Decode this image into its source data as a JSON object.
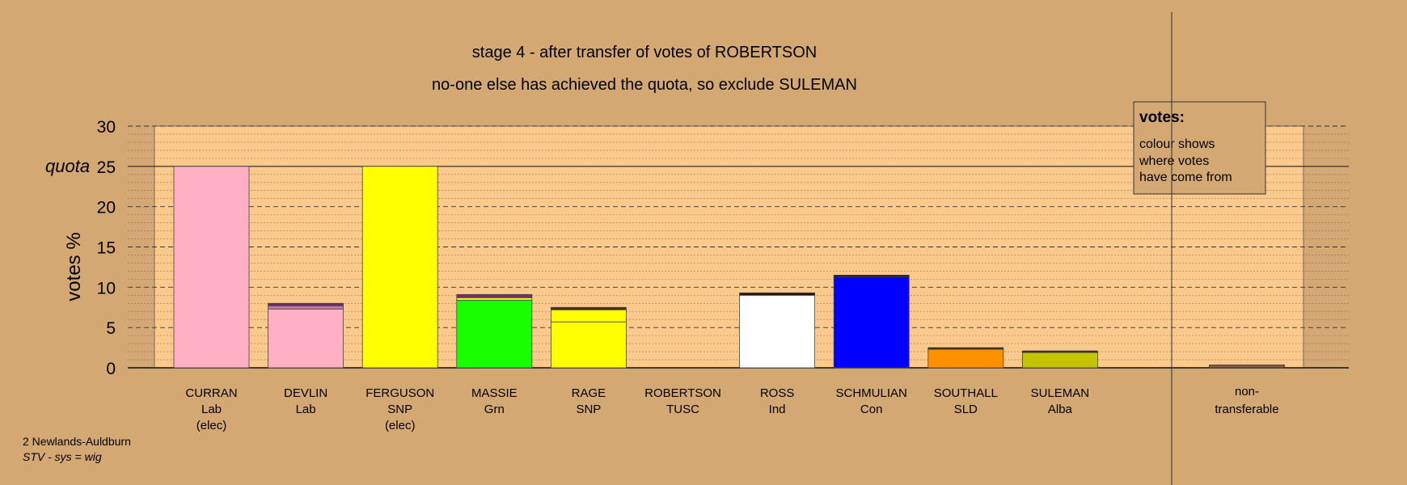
{
  "chart_data": {
    "type": "bar",
    "title": "stage 4 - after transfer of votes of ROBERTSON",
    "subtitle": "no-one else has achieved the quota, so exclude SULEMAN",
    "ylabel": "votes %",
    "ylim": [
      0,
      30
    ],
    "yticks": [
      0,
      5,
      10,
      15,
      20,
      25,
      30
    ],
    "quota_label": "quota",
    "quota": 25,
    "legend": {
      "title": "votes:",
      "lines": [
        "colour shows",
        "where votes",
        "have come from"
      ],
      "position": "top-right"
    },
    "colors": {
      "background": "#d4a872",
      "plot_area": "#fbc98c",
      "plot_side": "#d4a872"
    },
    "candidates": [
      {
        "name": "CURRAN",
        "party": "Lab",
        "status": "(elec)",
        "segments": [
          {
            "value": 25.0,
            "color": "#ffb0c4"
          }
        ]
      },
      {
        "name": "DEVLIN",
        "party": "Lab",
        "status": "",
        "segments": [
          {
            "value": 7.3,
            "color": "#ffb0c4"
          },
          {
            "value": 0.4,
            "color": "#c47a9a"
          },
          {
            "value": 0.3,
            "color": "#6b2a6a"
          }
        ]
      },
      {
        "name": "FERGUSON",
        "party": "SNP",
        "status": "(elec)",
        "segments": [
          {
            "value": 25.0,
            "color": "#ffff00"
          }
        ]
      },
      {
        "name": "MASSIE",
        "party": "Grn",
        "status": "",
        "segments": [
          {
            "value": 8.4,
            "color": "#1aff00"
          },
          {
            "value": 0.3,
            "color": "#ffff00"
          },
          {
            "value": 0.4,
            "color": "#7a2a7a"
          }
        ]
      },
      {
        "name": "RAGE",
        "party": "SNP",
        "status": "",
        "segments": [
          {
            "value": 5.7,
            "color": "#ffff00"
          },
          {
            "value": 1.5,
            "color": "#ffff00"
          },
          {
            "value": 0.3,
            "color": "#4a2a2a"
          }
        ]
      },
      {
        "name": "ROBERTSON",
        "party": "TUSC",
        "status": "",
        "segments": []
      },
      {
        "name": "ROSS",
        "party": "Ind",
        "status": "",
        "segments": [
          {
            "value": 9.0,
            "color": "#ffffff"
          },
          {
            "value": 0.3,
            "color": "#2a1010"
          }
        ]
      },
      {
        "name": "SCHMULIAN",
        "party": "Con",
        "status": "",
        "segments": [
          {
            "value": 11.3,
            "color": "#0000ff"
          },
          {
            "value": 0.2,
            "color": "#200a20"
          }
        ]
      },
      {
        "name": "SOUTHALL",
        "party": "SLD",
        "status": "",
        "segments": [
          {
            "value": 2.3,
            "color": "#ff9000"
          },
          {
            "value": 0.2,
            "color": "#3a2010"
          }
        ]
      },
      {
        "name": "SULEMAN",
        "party": "Alba",
        "status": "",
        "segments": [
          {
            "value": 1.9,
            "color": "#c4c400"
          },
          {
            "value": 0.2,
            "color": "#3a2010"
          }
        ]
      }
    ],
    "nontransferable": {
      "label_lines": [
        "non-",
        "transferable"
      ],
      "value": 0.35,
      "color": "#8b5a3a"
    }
  },
  "footer": {
    "ward": "2 Newlands-Auldburn",
    "system": "STV - sys = wig"
  }
}
